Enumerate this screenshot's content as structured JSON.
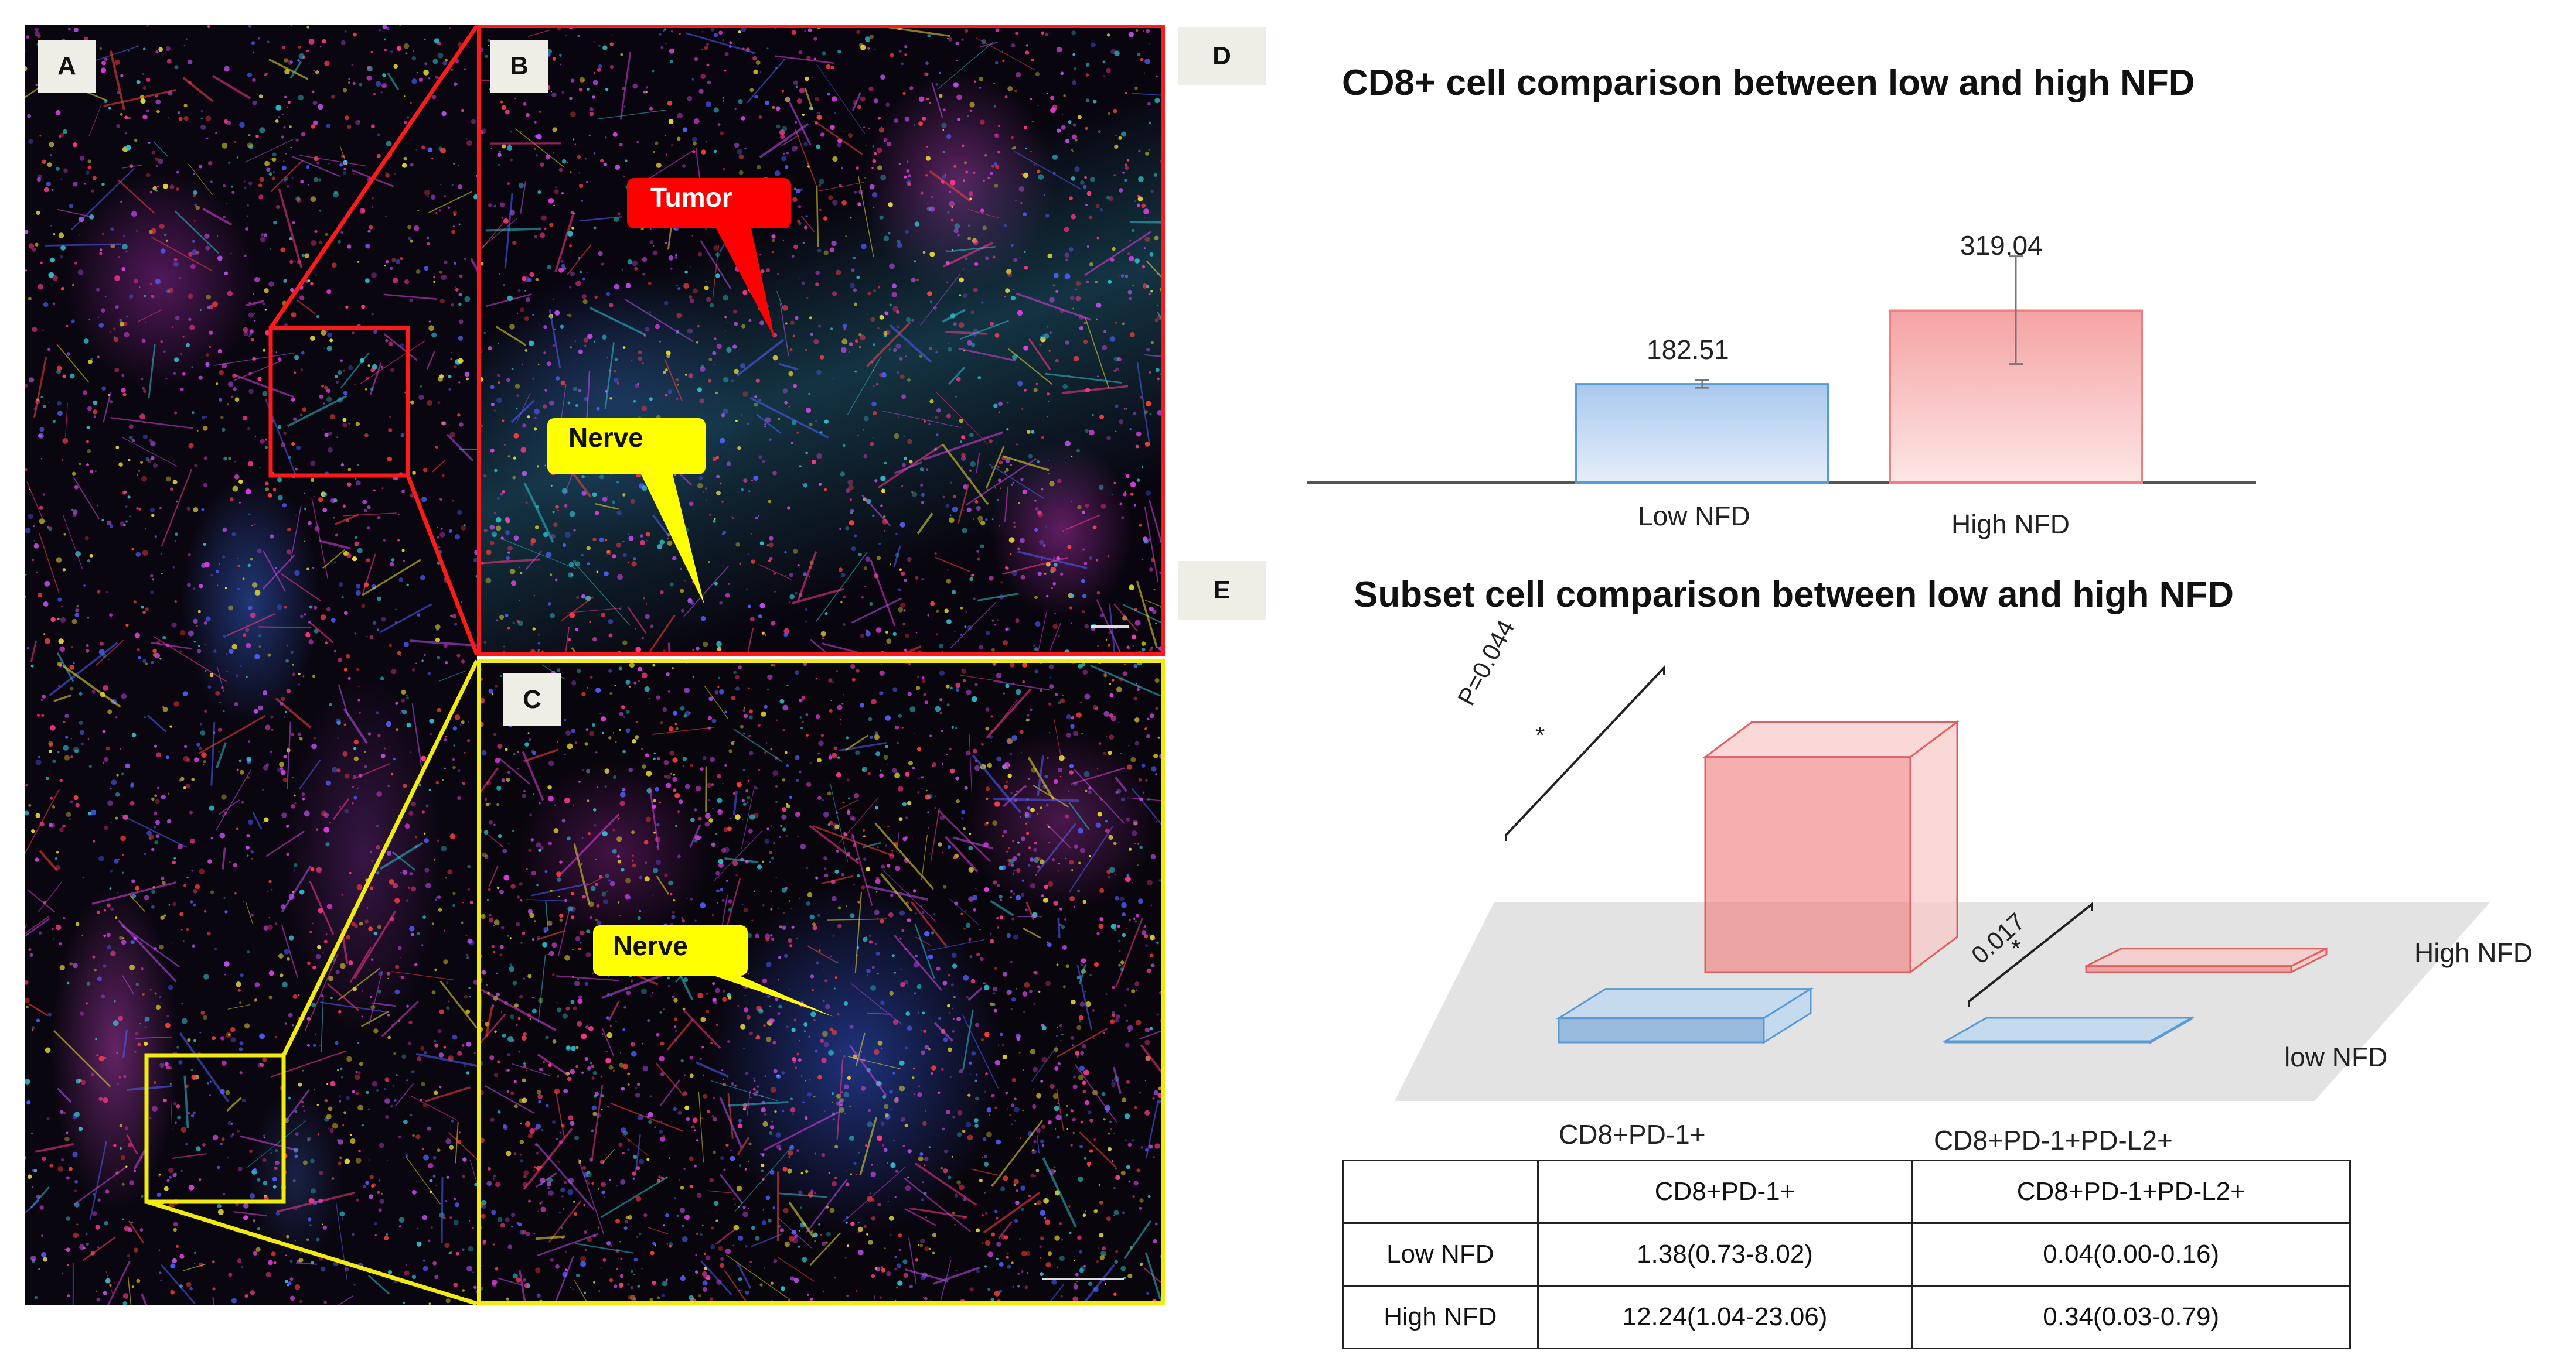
{
  "panels": {
    "a": {
      "letter": "A"
    },
    "b": {
      "letter": "B",
      "tumor_label": "Tumor",
      "nerve_label": "Nerve"
    },
    "c": {
      "letter": "C",
      "nerve_label": "Nerve"
    },
    "d": {
      "letter": "D"
    },
    "e": {
      "letter": "E"
    }
  },
  "colors": {
    "low": "#5b9bd5",
    "high": "#f08080",
    "red_frame": "#ff0000",
    "yellow_frame": "#ffff00"
  },
  "chart_data": [
    {
      "type": "bar",
      "title": "CD8+ cell comparison between low and high NFD",
      "categories": [
        "Low NFD",
        "High NFD"
      ],
      "values": [
        182.51,
        319.04
      ],
      "value_labels": [
        "182.51",
        "319.04"
      ],
      "error_bar_approx": [
        {
          "low": 176,
          "high": 190
        },
        {
          "low": 220,
          "high": 420
        }
      ]
    },
    {
      "type": "bar",
      "title": "Subset cell comparison between low and high NFD",
      "categories": [
        "CD8+PD-1+",
        "CD8+PD-1+PD-L2+"
      ],
      "series": [
        {
          "name": "low NFD",
          "values": [
            1.38,
            0.04
          ]
        },
        {
          "name": "High NFD",
          "values": [
            12.24,
            0.34
          ]
        }
      ],
      "annotations": [
        {
          "text": "P=0.044",
          "star": "*",
          "category": "CD8+PD-1+"
        },
        {
          "text": "0.017",
          "star": "*",
          "category": "CD8+PD-1+PD-L2+"
        }
      ],
      "table": {
        "header": [
          "",
          "CD8+PD-1+",
          "CD8+PD-1+PD-L2+"
        ],
        "rows": [
          [
            "Low NFD",
            "1.38(0.73-8.02)",
            "0.04(0.00-0.16)"
          ],
          [
            "High NFD",
            "12.24(1.04-23.06)",
            "0.34(0.03-0.79)"
          ]
        ]
      }
    }
  ]
}
